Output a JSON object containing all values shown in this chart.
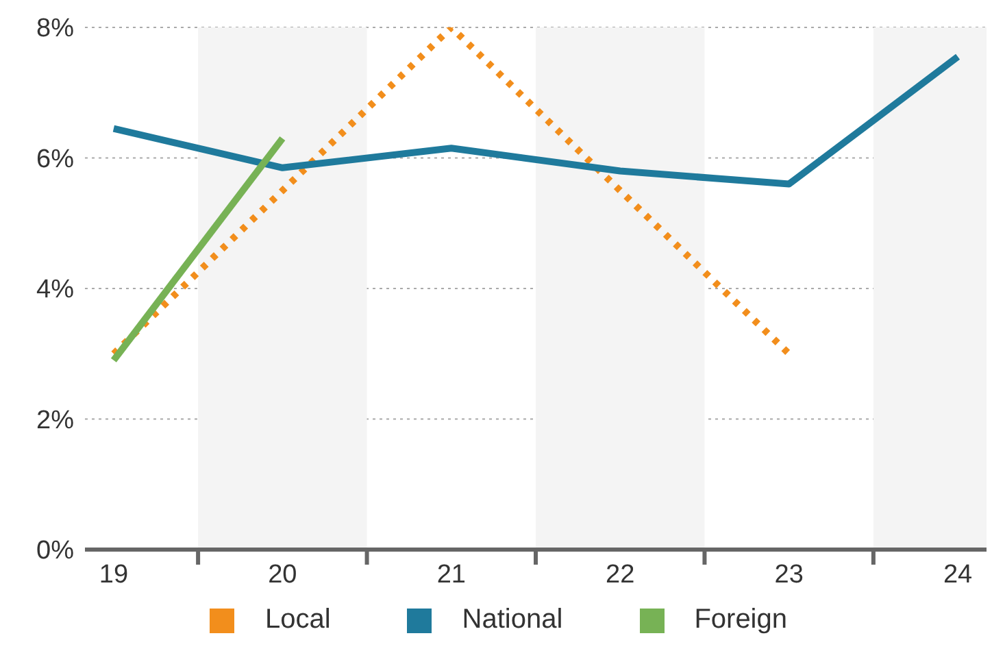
{
  "chart_data": {
    "type": "line",
    "x": [
      19,
      20,
      21,
      22,
      23,
      24
    ],
    "series": [
      {
        "name": "Local",
        "color": "#f28e1c",
        "line_style": "dotted",
        "values": [
          3.0,
          5.5,
          8.0,
          5.5,
          3.0,
          null
        ]
      },
      {
        "name": "National",
        "color": "#1f7a9c",
        "line_style": "solid",
        "values": [
          6.45,
          5.85,
          6.15,
          5.8,
          5.6,
          7.55
        ]
      },
      {
        "name": "Foreign",
        "color": "#77b255",
        "line_style": "solid",
        "values": [
          2.9,
          6.3,
          null,
          null,
          null,
          null
        ]
      }
    ],
    "xlim": [
      18.83,
      24.17
    ],
    "xticks": [
      19,
      {
        "value": 19.5,
        "label": null
      },
      20,
      {
        "value": 20.5,
        "label": null
      },
      21,
      {
        "value": 21.5,
        "label": null
      },
      22,
      {
        "value": 22.5,
        "label": null
      },
      23,
      {
        "value": 23.5,
        "label": null
      },
      24
    ],
    "ylim": [
      0,
      8
    ],
    "yticks": [
      {
        "value": 0,
        "label": "0%"
      },
      {
        "value": 2,
        "label": "2%"
      },
      {
        "value": 4,
        "label": "4%"
      },
      {
        "value": 6,
        "label": "6%"
      },
      {
        "value": 8,
        "label": "8%"
      }
    ],
    "bands": [
      {
        "axis": "x",
        "from": 19.5,
        "to": 20.5,
        "color": "#f4f4f4"
      },
      {
        "axis": "x",
        "from": 21.5,
        "to": 22.5,
        "color": "#f4f4f4"
      },
      {
        "axis": "x",
        "from": 23.5,
        "to": 24.17,
        "color": "#f4f4f4"
      }
    ],
    "grid": "y",
    "legend": "bottom",
    "marker": "none"
  }
}
